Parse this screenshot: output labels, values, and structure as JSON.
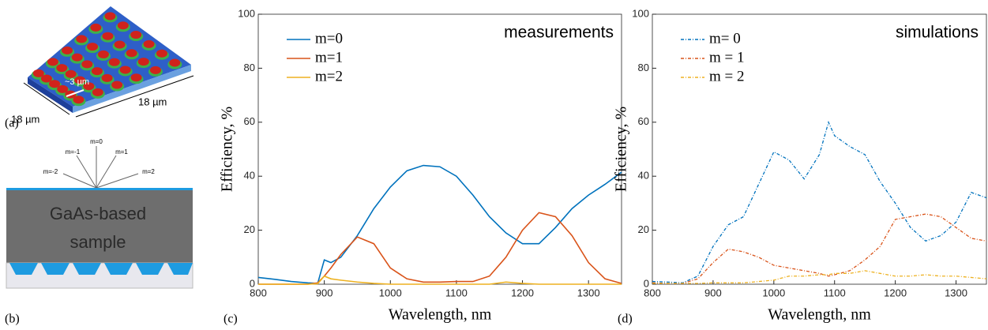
{
  "diagram": {
    "panel_labels": [
      "(a)",
      "(b)"
    ],
    "dim_left": "18 µm",
    "dim_bottom": "18 µm",
    "pitch": "~3 µm",
    "orders": [
      "m=0",
      "m=-1",
      "m=1",
      "m=-2",
      "m=2"
    ],
    "sample_label": [
      "GaAs-based",
      "sample"
    ]
  },
  "chart_data": [
    {
      "type": "line",
      "panel_label": "(c)",
      "annotation": "measurements",
      "xlabel": "Wavelength, nm",
      "ylabel": "Efficiency, %",
      "xlim": [
        800,
        1350
      ],
      "xticks": [
        800,
        900,
        1000,
        1100,
        1200,
        1300
      ],
      "ylim": [
        0,
        100
      ],
      "yticks": [
        0,
        20,
        40,
        60,
        80,
        100
      ],
      "dashed": false,
      "legend": "upper left",
      "x": [
        800,
        825,
        850,
        875,
        890,
        900,
        910,
        925,
        950,
        975,
        1000,
        1025,
        1050,
        1075,
        1100,
        1125,
        1150,
        1175,
        1200,
        1225,
        1250,
        1275,
        1300,
        1325,
        1350
      ],
      "series": [
        {
          "name": "m=0",
          "color": "#0072bd",
          "values": [
            2.5,
            1.8,
            1,
            0.5,
            0.3,
            9,
            8,
            10,
            18,
            28,
            36,
            42,
            44,
            43.5,
            40,
            33,
            25,
            19,
            15,
            15,
            21,
            28,
            33,
            37,
            41.5
          ]
        },
        {
          "name": "m=1",
          "color": "#d95319",
          "values": [
            0,
            0,
            0,
            0,
            0.5,
            3,
            6,
            11,
            17.5,
            15,
            6,
            2,
            0.8,
            0.8,
            1,
            1,
            3,
            10,
            20,
            26.5,
            25,
            18,
            8,
            2,
            0.3
          ]
        },
        {
          "name": "m=2",
          "color": "#edb120",
          "values": [
            0,
            0,
            0,
            0,
            0.2,
            3,
            2,
            1.5,
            0.8,
            0.3,
            0,
            0,
            0,
            0,
            0,
            0,
            0,
            0.8,
            0.3,
            0,
            0,
            0,
            0,
            0,
            0
          ]
        }
      ]
    },
    {
      "type": "line",
      "panel_label": "(d)",
      "annotation": "simulations",
      "xlabel": "Wavelength, nm",
      "ylabel": "Efficiency, %",
      "xlim": [
        800,
        1350
      ],
      "xticks": [
        800,
        900,
        1000,
        1100,
        1200,
        1300
      ],
      "ylim": [
        0,
        100
      ],
      "yticks": [
        0,
        20,
        40,
        60,
        80,
        100
      ],
      "dashed": true,
      "legend": "upper left",
      "x": [
        800,
        825,
        850,
        875,
        900,
        925,
        950,
        975,
        1000,
        1025,
        1050,
        1075,
        1090,
        1100,
        1125,
        1150,
        1175,
        1200,
        1225,
        1250,
        1275,
        1300,
        1325,
        1350
      ],
      "series": [
        {
          "name": "m= 0",
          "color": "#0072bd",
          "values": [
            1,
            0.8,
            0.5,
            3,
            14,
            22,
            25,
            37,
            49,
            46,
            39,
            48,
            60,
            55,
            51,
            48,
            38,
            30,
            21,
            16,
            18,
            23,
            34,
            32
          ]
        },
        {
          "name": "m = 1",
          "color": "#d95319",
          "values": [
            0.5,
            0.3,
            0.3,
            2,
            8,
            13,
            12,
            10,
            7,
            6,
            5,
            4,
            3,
            3.5,
            5,
            9,
            14,
            24,
            25,
            26,
            25,
            21,
            17,
            16
          ]
        },
        {
          "name": "m = 2",
          "color": "#edb120",
          "values": [
            0.3,
            0.3,
            0.3,
            0.3,
            0.5,
            0.5,
            0.5,
            1,
            1.5,
            3,
            3,
            3.5,
            3.5,
            4,
            4,
            5,
            4,
            3,
            3,
            3.5,
            3,
            3,
            2.5,
            2
          ]
        }
      ]
    }
  ]
}
